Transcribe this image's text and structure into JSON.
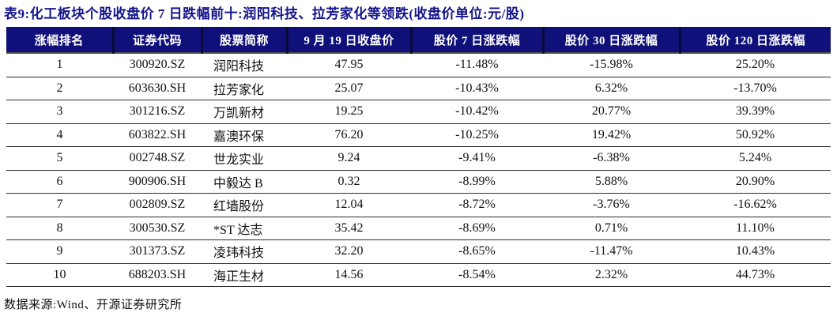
{
  "title": "表9:化工板块个股收盘价 7 日跌幅前十:润阳科技、拉芳家化等领跌(收盘价单位:元/股)",
  "colors": {
    "header_bg": "#10107a",
    "title": "#14148c",
    "header_text": "#ffffff",
    "row_border": "#2e2e2e"
  },
  "table": {
    "columns": [
      "涨幅排名",
      "证券代码",
      "股票简称",
      "9 月 19 日收盘价",
      "股价 7 日涨跌幅",
      "股价 30 日涨跌幅",
      "股价 120 日涨跌幅"
    ],
    "rows": [
      [
        "1",
        "300920.SZ",
        "润阳科技",
        "47.95",
        "-11.48%",
        "-15.98%",
        "25.20%"
      ],
      [
        "2",
        "603630.SH",
        "拉芳家化",
        "25.07",
        "-10.43%",
        "6.32%",
        "-13.70%"
      ],
      [
        "3",
        "301216.SZ",
        "万凯新材",
        "19.25",
        "-10.42%",
        "20.77%",
        "39.39%"
      ],
      [
        "4",
        "603822.SH",
        "嘉澳环保",
        "76.20",
        "-10.25%",
        "19.42%",
        "50.92%"
      ],
      [
        "5",
        "002748.SZ",
        "世龙实业",
        "9.24",
        "-9.41%",
        "-6.38%",
        "5.24%"
      ],
      [
        "6",
        "900906.SH",
        "中毅达 B",
        "0.32",
        "-8.99%",
        "5.88%",
        "20.90%"
      ],
      [
        "7",
        "002809.SZ",
        "红墙股份",
        "12.04",
        "-8.72%",
        "-3.76%",
        "-16.62%"
      ],
      [
        "8",
        "300530.SZ",
        "*ST 达志",
        "35.42",
        "-8.69%",
        "0.71%",
        "11.10%"
      ],
      [
        "9",
        "301373.SZ",
        "凌玮科技",
        "32.20",
        "-8.65%",
        "-11.47%",
        "10.43%"
      ],
      [
        "10",
        "688203.SH",
        "海正生材",
        "14.56",
        "-8.54%",
        "2.32%",
        "44.73%"
      ]
    ]
  },
  "footer": {
    "source": "数据来源:Wind、开源证券研究所"
  }
}
